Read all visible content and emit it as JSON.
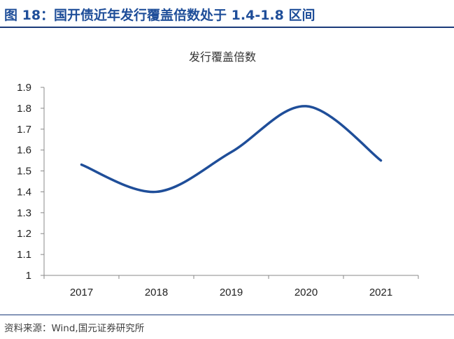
{
  "header": {
    "figure_title": "图 18：国开债近年发行覆盖倍数处于 1.4-1.8 区间"
  },
  "footer": {
    "source": "资料来源：Wind,国元证券研究所"
  },
  "colors": {
    "accent": "#1f4e99",
    "series_line": "#1f4e99",
    "rule": "#1a3a7a"
  },
  "chart_data": {
    "type": "line",
    "title": "发行覆盖倍数",
    "xlabel": "",
    "ylabel": "",
    "categories": [
      "2017",
      "2018",
      "2019",
      "2020",
      "2021"
    ],
    "series": [
      {
        "values": [
          1.53,
          1.4,
          1.59,
          1.81,
          1.55
        ]
      }
    ],
    "ylim": [
      1,
      1.9
    ],
    "yticks": [
      "1",
      "1.1",
      "1.2",
      "1.3",
      "1.4",
      "1.5",
      "1.6",
      "1.7",
      "1.8",
      "1.9"
    ],
    "grid": false,
    "smooth": true
  }
}
